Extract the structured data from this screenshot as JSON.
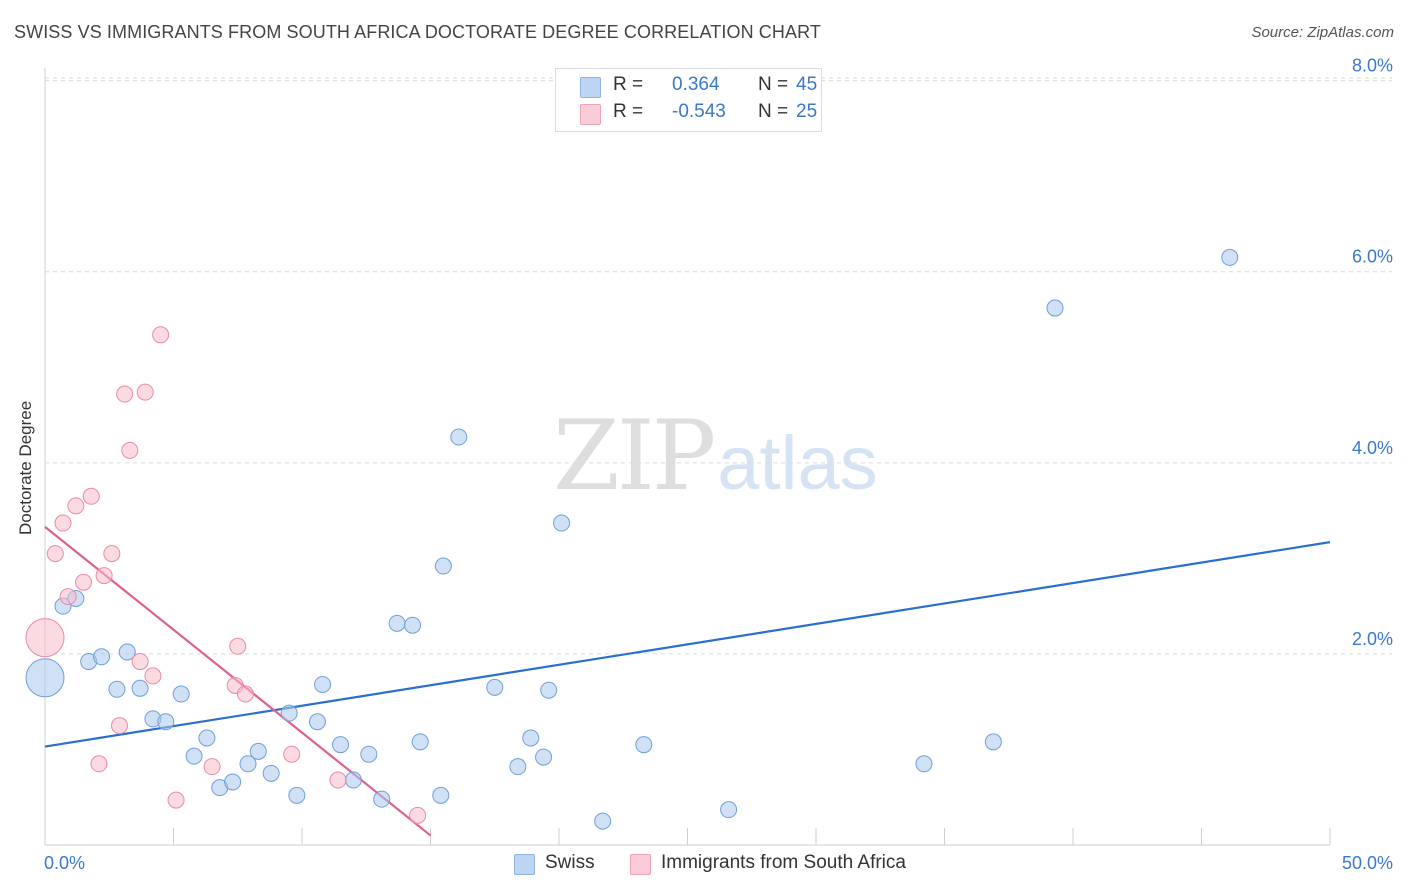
{
  "title": "SWISS VS IMMIGRANTS FROM SOUTH AFRICA DOCTORATE DEGREE CORRELATION CHART",
  "source": "Source: ZipAtlas.com",
  "watermark": {
    "zip": "ZIP",
    "atlas": "atlas"
  },
  "legend": {
    "swiss": {
      "r_label": "R =",
      "r_value": "0.364",
      "n_label": "N =",
      "n_value": "45"
    },
    "sa": {
      "r_label": "R =",
      "r_value": "-0.543",
      "n_label": "N =",
      "n_value": "25"
    }
  },
  "chart_data": {
    "type": "scatter",
    "title": "SWISS VS IMMIGRANTS FROM SOUTH AFRICA DOCTORATE DEGREE CORRELATION CHART",
    "xlabel": "",
    "ylabel": "Doctorate Degree",
    "xlim": [
      0,
      50
    ],
    "ylim": [
      0,
      8.3
    ],
    "x_tick_labels": [
      "0.0%",
      "50.0%"
    ],
    "y_ticks": [
      2,
      4,
      6,
      8
    ],
    "y_tick_labels": [
      "2.0%",
      "4.0%",
      "6.0%",
      "8.0%"
    ],
    "grid": true,
    "legend_position": "top-center",
    "series": [
      {
        "name": "Swiss",
        "color": "#a9c8ee",
        "stroke": "#6f9fd8",
        "trend_color": "#2a6fcf",
        "trend": {
          "x": [
            0,
            50
          ],
          "y": [
            1.03,
            3.17
          ]
        },
        "points": [
          {
            "x": 0.0,
            "y": 1.75,
            "big": true
          },
          {
            "x": 0.7,
            "y": 2.5
          },
          {
            "x": 1.2,
            "y": 2.58
          },
          {
            "x": 1.7,
            "y": 1.92
          },
          {
            "x": 2.2,
            "y": 1.97
          },
          {
            "x": 2.8,
            "y": 1.63
          },
          {
            "x": 3.2,
            "y": 2.02
          },
          {
            "x": 3.7,
            "y": 1.64
          },
          {
            "x": 4.2,
            "y": 1.32
          },
          {
            "x": 4.7,
            "y": 1.29
          },
          {
            "x": 5.3,
            "y": 1.58
          },
          {
            "x": 5.8,
            "y": 0.93
          },
          {
            "x": 6.3,
            "y": 1.12
          },
          {
            "x": 6.8,
            "y": 0.6
          },
          {
            "x": 7.3,
            "y": 0.66
          },
          {
            "x": 7.9,
            "y": 0.85
          },
          {
            "x": 8.3,
            "y": 0.98
          },
          {
            "x": 8.8,
            "y": 0.75
          },
          {
            "x": 9.5,
            "y": 1.38
          },
          {
            "x": 9.8,
            "y": 0.52
          },
          {
            "x": 10.6,
            "y": 1.29
          },
          {
            "x": 10.8,
            "y": 1.68
          },
          {
            "x": 11.5,
            "y": 1.05
          },
          {
            "x": 12.0,
            "y": 0.68
          },
          {
            "x": 12.6,
            "y": 0.95
          },
          {
            "x": 13.1,
            "y": 0.48
          },
          {
            "x": 13.7,
            "y": 2.32
          },
          {
            "x": 14.3,
            "y": 2.3
          },
          {
            "x": 14.6,
            "y": 1.08
          },
          {
            "x": 15.4,
            "y": 0.52
          },
          {
            "x": 15.5,
            "y": 2.92
          },
          {
            "x": 16.1,
            "y": 4.27
          },
          {
            "x": 17.5,
            "y": 1.65
          },
          {
            "x": 18.4,
            "y": 0.82
          },
          {
            "x": 18.9,
            "y": 1.12
          },
          {
            "x": 19.4,
            "y": 0.92
          },
          {
            "x": 19.6,
            "y": 1.62
          },
          {
            "x": 20.1,
            "y": 3.37
          },
          {
            "x": 21.7,
            "y": 0.25
          },
          {
            "x": 23.3,
            "y": 1.05
          },
          {
            "x": 26.6,
            "y": 0.37
          },
          {
            "x": 34.2,
            "y": 0.85
          },
          {
            "x": 36.9,
            "y": 1.08
          },
          {
            "x": 39.3,
            "y": 5.62
          },
          {
            "x": 46.1,
            "y": 6.15
          }
        ]
      },
      {
        "name": "Immigrants from South Africa",
        "color": "#f7bccb",
        "stroke": "#ea8aa6",
        "trend_color": "#e0608e",
        "trend": {
          "x": [
            0,
            15.0
          ],
          "y": [
            3.33,
            0.1
          ]
        },
        "points": [
          {
            "x": 0.0,
            "y": 2.17,
            "big": true
          },
          {
            "x": 0.4,
            "y": 3.05
          },
          {
            "x": 0.7,
            "y": 3.37
          },
          {
            "x": 0.9,
            "y": 2.6
          },
          {
            "x": 1.2,
            "y": 3.55
          },
          {
            "x": 1.5,
            "y": 2.75
          },
          {
            "x": 1.8,
            "y": 3.65
          },
          {
            "x": 2.1,
            "y": 0.85
          },
          {
            "x": 2.3,
            "y": 2.82
          },
          {
            "x": 2.6,
            "y": 3.05
          },
          {
            "x": 2.9,
            "y": 1.25
          },
          {
            "x": 3.1,
            "y": 4.72
          },
          {
            "x": 3.3,
            "y": 4.13
          },
          {
            "x": 3.7,
            "y": 1.92
          },
          {
            "x": 3.9,
            "y": 4.74
          },
          {
            "x": 4.2,
            "y": 1.77
          },
          {
            "x": 4.5,
            "y": 5.34
          },
          {
            "x": 5.1,
            "y": 0.47
          },
          {
            "x": 6.5,
            "y": 0.82
          },
          {
            "x": 7.4,
            "y": 1.67
          },
          {
            "x": 7.5,
            "y": 2.08
          },
          {
            "x": 7.8,
            "y": 1.58
          },
          {
            "x": 9.6,
            "y": 0.95
          },
          {
            "x": 11.4,
            "y": 0.68
          },
          {
            "x": 14.5,
            "y": 0.31
          }
        ]
      }
    ]
  }
}
